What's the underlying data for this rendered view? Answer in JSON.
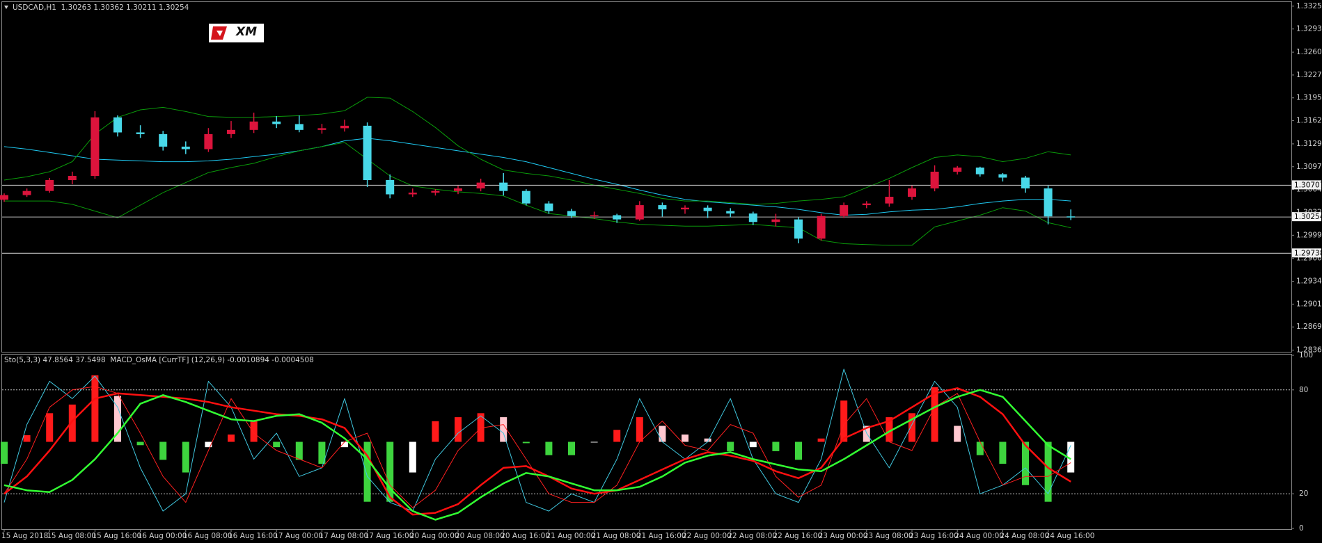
{
  "chart_data": [
    {
      "type": "candlestick",
      "title": "USDCAD,H1  1.30263 1.30362 1.30211 1.30254",
      "logo": "XM",
      "up_color": "#dc143c",
      "down_color": "#48d8e8",
      "open": [
        1.305,
        1.30566,
        1.30625,
        1.3078,
        1.30839,
        1.31672,
        1.31458,
        1.31434,
        1.31256,
        1.3122,
        1.31434,
        1.31494,
        1.31613,
        1.31577,
        1.31494,
        1.31518,
        1.31553,
        1.3078,
        1.30577,
        1.30601,
        1.30625,
        1.30661,
        1.30744,
        1.30625,
        1.30447,
        1.30339,
        1.30268,
        1.3028,
        1.3022,
        1.30423,
        1.30363,
        1.30387,
        1.30339,
        1.30304,
        1.30184,
        1.3022,
        1.29947,
        1.30268,
        1.30423,
        1.30447,
        1.30542,
        1.30661,
        1.30899,
        1.30958,
        1.30863,
        1.30815,
        1.30661,
        1.30263
      ],
      "high": [
        1.3059,
        1.3066,
        1.3081,
        1.309,
        1.3176,
        1.317,
        1.3156,
        1.3148,
        1.3133,
        1.3152,
        1.3162,
        1.3174,
        1.3169,
        1.317,
        1.3158,
        1.3164,
        1.316,
        1.3086,
        1.3066,
        1.3065,
        1.307,
        1.308,
        1.3088,
        1.3065,
        1.3048,
        1.3037,
        1.3033,
        1.303,
        1.3048,
        1.3046,
        1.3042,
        1.3042,
        1.3038,
        1.3033,
        1.303,
        1.3025,
        1.303,
        1.3046,
        1.3048,
        1.3078,
        1.307,
        1.3099,
        1.3098,
        1.3097,
        1.3088,
        1.3084,
        1.307,
        1.30362
      ],
      "low": [
        1.3047,
        1.3054,
        1.306,
        1.3072,
        1.308,
        1.314,
        1.3138,
        1.312,
        1.3115,
        1.3118,
        1.3138,
        1.3145,
        1.3152,
        1.3146,
        1.3144,
        1.3147,
        1.3068,
        1.3052,
        1.3054,
        1.3056,
        1.3058,
        1.3062,
        1.3056,
        1.3042,
        1.303,
        1.3024,
        1.3023,
        1.3017,
        1.302,
        1.3026,
        1.303,
        1.3024,
        1.3025,
        1.3014,
        1.3012,
        1.2988,
        1.2992,
        1.3024,
        1.3038,
        1.304,
        1.305,
        1.3062,
        1.3086,
        1.3083,
        1.3076,
        1.306,
        1.3015,
        1.30211
      ],
      "close": [
        1.30566,
        1.30625,
        1.3078,
        1.30839,
        1.31672,
        1.31458,
        1.31434,
        1.31256,
        1.3122,
        1.31434,
        1.31494,
        1.31613,
        1.31577,
        1.31494,
        1.31518,
        1.31553,
        1.3078,
        1.30577,
        1.30601,
        1.30625,
        1.30661,
        1.30744,
        1.30625,
        1.30447,
        1.30339,
        1.30268,
        1.3028,
        1.3022,
        1.30423,
        1.30363,
        1.30387,
        1.30339,
        1.30304,
        1.30184,
        1.3022,
        1.29947,
        1.30268,
        1.30423,
        1.30447,
        1.30542,
        1.30661,
        1.30899,
        1.30958,
        1.30863,
        1.30815,
        1.30661,
        1.30263,
        1.30254
      ],
      "series": [
        {
          "color": "#1ec8f0",
          "values": [
            1.31256,
            1.3122,
            1.31173,
            1.31125,
            1.31077,
            1.31065,
            1.31053,
            1.31041,
            1.31041,
            1.31053,
            1.31077,
            1.31113,
            1.31149,
            1.31196,
            1.31256,
            1.31339,
            1.31375,
            1.31339,
            1.31291,
            1.31244,
            1.31196,
            1.31149,
            1.31101,
            1.31041,
            1.30958,
            1.30875,
            1.30792,
            1.3072,
            1.30637,
            1.30566,
            1.30506,
            1.30471,
            1.30447,
            1.30423,
            1.30399,
            1.30363,
            1.30316,
            1.3028,
            1.30292,
            1.30328,
            1.30352,
            1.30363,
            1.30399,
            1.30447,
            1.30482,
            1.30506,
            1.30506,
            1.30482
          ]
        },
        {
          "color": "#0a9a0a",
          "values": [
            1.3078,
            1.30827,
            1.30899,
            1.31042,
            1.31434,
            1.31672,
            1.31779,
            1.31815,
            1.31756,
            1.31684,
            1.31672,
            1.31672,
            1.31684,
            1.31696,
            1.3172,
            1.31767,
            1.31958,
            1.31946,
            1.31756,
            1.31529,
            1.31268,
            1.31077,
            1.30923,
            1.30875,
            1.30839,
            1.3078,
            1.30708,
            1.30649,
            1.30589,
            1.30518,
            1.30482,
            1.30482,
            1.30458,
            1.30435,
            1.30447,
            1.30482,
            1.30506,
            1.30542,
            1.30673,
            1.30804,
            1.30958,
            1.31101,
            1.31137,
            1.31113,
            1.31042,
            1.31089,
            1.31184,
            1.31137
          ]
        },
        {
          "color": "#0a9a0a",
          "values": [
            1.30482,
            1.30482,
            1.30482,
            1.30435,
            1.30339,
            1.30244,
            1.30423,
            1.30601,
            1.30744,
            1.30887,
            1.30958,
            1.31018,
            1.31113,
            1.31196,
            1.31256,
            1.31315,
            1.31077,
            1.30839,
            1.30696,
            1.30649,
            1.30613,
            1.30589,
            1.30554,
            1.30423,
            1.30304,
            1.30268,
            1.30232,
            1.30185,
            1.30149,
            1.30137,
            1.30125,
            1.30125,
            1.30137,
            1.30149,
            1.30125,
            1.30101,
            1.29923,
            1.29875,
            1.29863,
            1.29852,
            1.29852,
            1.30113,
            1.30197,
            1.3028,
            1.30387,
            1.30339,
            1.30173,
            1.30101
          ]
        }
      ],
      "levels": [
        1.30707,
        1.29738
      ],
      "bid": 1.30254,
      "ylim": [
        1.28336,
        1.33303
      ],
      "yticks": [
        {
          "value": 1.2836,
          "label": "1.28360"
        },
        {
          "value": 1.2869,
          "label": "1.28690"
        },
        1.29015,
        {
          "value": 1.2934,
          "label": "1.29340"
        },
        1.29665,
        1.29995,
        {
          "value": 1.3032,
          "label": "1.30320"
        },
        1.30645,
        {
          "value": 1.3097,
          "label": "1.30970"
        },
        1.31295,
        1.31625,
        {
          "value": 1.3195,
          "label": "1.31950"
        },
        1.32275,
        {
          "value": 1.326,
          "label": "1.32600"
        },
        {
          "value": 1.3293,
          "label": "1.32930"
        },
        1.33255
      ]
    },
    {
      "type": "line",
      "title": "Sto(5,3,3) 47.8564 37.5498  MACD_OsMA [CurrTF] (12,26,9) -0.0010894 -0.0004508",
      "categories": [
        "15 Aug 2018",
        null,
        "15 Aug 08:00",
        null,
        "15 Aug 16:00",
        null,
        "16 Aug 00:00",
        null,
        "16 Aug 08:00",
        null,
        "16 Aug 16:00",
        null,
        "17 Aug 00:00",
        null,
        "17 Aug 08:00",
        null,
        "17 Aug 16:00",
        null,
        "20 Aug 00:00",
        null,
        "20 Aug 08:00",
        null,
        "20 Aug 16:00",
        null,
        "21 Aug 00:00",
        null,
        "21 Aug 08:00",
        null,
        "21 Aug 16:00",
        null,
        "22 Aug 00:00",
        null,
        "22 Aug 08:00",
        null,
        "22 Aug 16:00",
        null,
        "23 Aug 00:00",
        null,
        "23 Aug 08:00",
        null,
        "23 Aug 16:00",
        null,
        "24 Aug 00:00",
        null,
        "24 Aug 08:00",
        null,
        "24 Aug 16:00",
        null
      ],
      "series": [
        {
          "type": "bar",
          "axis": "y2",
          "colors": [
            "#ff1a1a",
            "#ffc8d0",
            "#3ed43e",
            "#ffffff"
          ],
          "values": [
            -0.00033,
            0.0001,
            0.00043,
            0.00056,
            0.001,
            0.00069,
            -5e-05,
            -0.00027,
            -0.00046,
            -8e-05,
            0.00011,
            0.00031,
            -8e-05,
            -0.00027,
            -0.00033,
            -8e-05,
            -0.0009,
            -0.0009,
            -0.00046,
            0.00031,
            0.00037,
            0.00043,
            0.00037,
            -2e-05,
            -0.0002,
            -0.0002,
            -1e-05,
            0.00018,
            0.00037,
            0.00024,
            0.00011,
            5e-05,
            -0.00014,
            -8e-05,
            -0.00014,
            -0.00027,
            5e-05,
            0.00062,
            0.00024,
            0.00037,
            0.00043,
            0.00082,
            0.00024,
            -0.0002,
            -0.00033,
            -0.00065,
            -0.0009,
            -0.00046
          ]
        },
        {
          "color": "#40c8e0",
          "values": [
            15,
            60,
            85,
            75,
            88,
            70,
            35,
            10,
            20,
            85,
            70,
            40,
            55,
            30,
            35,
            75,
            30,
            15,
            10,
            40,
            55,
            65,
            55,
            15,
            10,
            20,
            15,
            40,
            75,
            50,
            40,
            50,
            75,
            40,
            20,
            15,
            40,
            92,
            55,
            35,
            60,
            85,
            70,
            20,
            25,
            35,
            20,
            48
          ]
        },
        {
          "color": "#ff2020",
          "values": [
            20,
            40,
            70,
            80,
            82,
            78,
            55,
            30,
            15,
            45,
            75,
            55,
            45,
            40,
            35,
            50,
            55,
            25,
            12,
            22,
            45,
            58,
            60,
            40,
            20,
            15,
            15,
            25,
            50,
            62,
            48,
            45,
            60,
            55,
            30,
            18,
            25,
            60,
            75,
            50,
            45,
            70,
            78,
            50,
            25,
            30,
            30,
            38
          ]
        },
        {
          "color": "#ff1010",
          "values": [
            20,
            30,
            45,
            62,
            75,
            78,
            77,
            76,
            75,
            73,
            70,
            68,
            66,
            65,
            63,
            58,
            42,
            18,
            8,
            9,
            14,
            25,
            35,
            36,
            30,
            23,
            20,
            22,
            28,
            34,
            40,
            44,
            42,
            39,
            33,
            29,
            35,
            52,
            58,
            62,
            70,
            78,
            81,
            76,
            66,
            48,
            35,
            27
          ]
        },
        {
          "color": "#32ff32",
          "values": [
            25,
            22,
            21,
            28,
            40,
            55,
            72,
            77,
            73,
            68,
            63,
            62,
            65,
            66,
            61,
            52,
            40,
            23,
            10,
            5,
            9,
            18,
            26,
            32,
            30,
            26,
            22,
            22,
            24,
            30,
            38,
            42,
            44,
            40,
            37,
            34,
            33,
            40,
            48,
            56,
            63,
            70,
            76,
            80,
            76,
            62,
            48,
            40
          ]
        }
      ],
      "levels": [
        20,
        80
      ],
      "ylim": [
        0,
        100
      ],
      "yticks": [
        0,
        20,
        80,
        100
      ],
      "y2lim": [
        -0.0013,
        0.0013
      ]
    }
  ]
}
